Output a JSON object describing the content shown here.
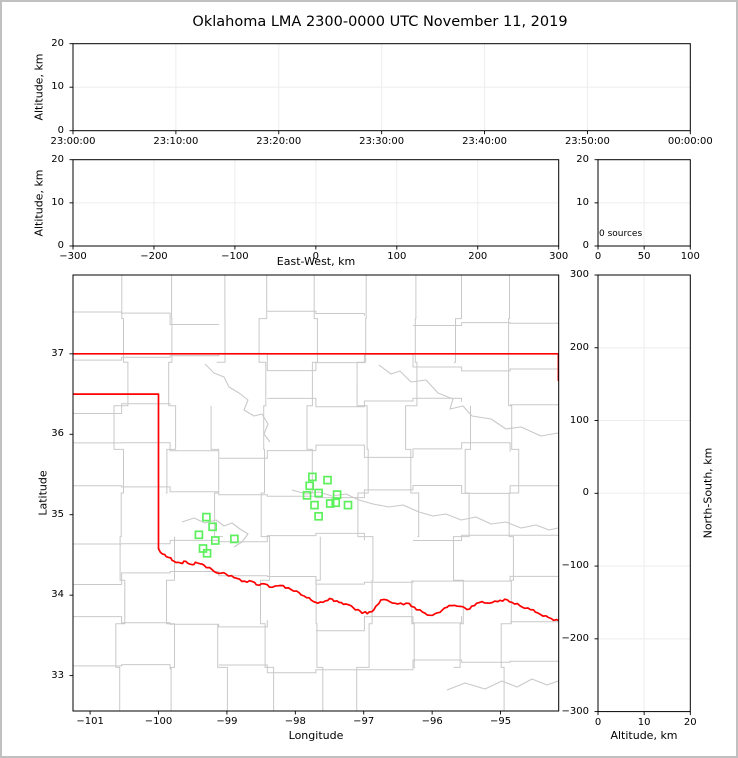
{
  "figure": {
    "title": "Oklahoma LMA 2300-0000 UTC November 11, 2019"
  },
  "colors": {
    "page_border": "#c0c0c0",
    "axis_frame": "#000000",
    "gridline": "#ededed",
    "county_lines": "#c9c9c9",
    "state_border": "#ff0000",
    "station_marker": "#5df05d",
    "text": "#000000"
  },
  "panels": {
    "time_height": {
      "ylabel": "Altitude, km",
      "xtick_labels": [
        "23:00:00",
        "23:10:00",
        "23:20:00",
        "23:30:00",
        "23:40:00",
        "23:50:00",
        "00:00:00"
      ],
      "xtick_values": [
        0,
        1,
        2,
        3,
        4,
        5,
        6
      ],
      "xlim": [
        0,
        6
      ],
      "ytick_labels": [
        "0",
        "10",
        "20"
      ],
      "ytick_values": [
        0,
        10,
        20
      ],
      "ylim": [
        0,
        20
      ]
    },
    "ew_height": {
      "ylabel": "Altitude, km",
      "xlabel": "East-West, km",
      "xtick_labels": [
        "−300",
        "−200",
        "−100",
        "0",
        "100",
        "200",
        "300"
      ],
      "xtick_values": [
        -300,
        -200,
        -100,
        0,
        100,
        200,
        300
      ],
      "xlim": [
        -300,
        300
      ],
      "ytick_labels": [
        "0",
        "10",
        "20"
      ],
      "ytick_values": [
        0,
        10,
        20
      ],
      "ylim": [
        0,
        20
      ]
    },
    "alt_hist": {
      "annotation": "0 sources",
      "xtick_labels": [
        "0",
        "50",
        "100"
      ],
      "xtick_values": [
        0,
        50,
        100
      ],
      "xlim": [
        0,
        100
      ],
      "ytick_labels": [
        "0",
        "10",
        "20"
      ],
      "ytick_values": [
        0,
        10,
        20
      ],
      "ylim": [
        0,
        20
      ]
    },
    "map": {
      "xlabel": "Longitude",
      "ylabel": "Latitude",
      "xtick_labels": [
        "−101",
        "−100",
        "−99",
        "−98",
        "−97",
        "−96",
        "−95"
      ],
      "xtick_values": [
        -101,
        -100,
        -99,
        -98,
        -97,
        -96,
        -95
      ],
      "xlim": [
        -101.25,
        -94.15
      ],
      "ytick_labels": [
        "33",
        "34",
        "35",
        "36",
        "37"
      ],
      "ytick_values": [
        33,
        34,
        35,
        36,
        37
      ],
      "ylim": [
        32.56,
        37.98
      ]
    },
    "ns_height": {
      "xlabel": "Altitude, km",
      "ylabel": "North-South, km",
      "xtick_labels": [
        "0",
        "10",
        "20"
      ],
      "xtick_values": [
        0,
        10,
        20
      ],
      "xlim": [
        0,
        20
      ],
      "ytick_labels": [
        "−300",
        "−200",
        "−100",
        "0",
        "100",
        "200",
        "300"
      ],
      "ytick_values": [
        -300,
        -200,
        -100,
        0,
        100,
        200,
        300
      ],
      "ylim": [
        -300,
        300
      ]
    }
  },
  "chart_data": [
    {
      "type": "scatter",
      "panel": "time_height",
      "title": "Oklahoma LMA 2300-0000 UTC November 11, 2019",
      "xlabel_ticks": [
        "23:00:00",
        "23:10:00",
        "23:20:00",
        "23:30:00",
        "23:40:00",
        "23:50:00",
        "00:00:00"
      ],
      "ylabel": "Altitude, km",
      "ylim": [
        0,
        20
      ],
      "points": [],
      "note": "no VHF sources plotted"
    },
    {
      "type": "scatter",
      "panel": "ew_height",
      "xlabel": "East-West, km",
      "ylabel": "Altitude, km",
      "xlim": [
        -300,
        300
      ],
      "ylim": [
        0,
        20
      ],
      "points": []
    },
    {
      "type": "histogram",
      "panel": "altitude_histogram",
      "xlim": [
        0,
        100
      ],
      "ylim": [
        0,
        20
      ],
      "annotation": "0 sources",
      "source_count": 0,
      "points": []
    },
    {
      "type": "map",
      "panel": "plan_view",
      "xlabel": "Longitude",
      "ylabel": "Latitude",
      "lon_lim": [
        -101.25,
        -94.15
      ],
      "lat_lim": [
        32.56,
        37.98
      ],
      "lma_stations_lon_lat": [
        [
          -99.3,
          34.97
        ],
        [
          -99.21,
          34.85
        ],
        [
          -99.41,
          34.75
        ],
        [
          -99.17,
          34.68
        ],
        [
          -98.89,
          34.7
        ],
        [
          -99.35,
          34.58
        ],
        [
          -99.29,
          34.52
        ],
        [
          -97.75,
          35.47
        ],
        [
          -97.53,
          35.43
        ],
        [
          -97.79,
          35.36
        ],
        [
          -97.66,
          35.27
        ],
        [
          -97.83,
          35.24
        ],
        [
          -97.39,
          35.25
        ],
        [
          -97.41,
          35.15
        ],
        [
          -97.49,
          35.14
        ],
        [
          -97.72,
          35.12
        ],
        [
          -97.23,
          35.12
        ],
        [
          -97.66,
          34.98
        ]
      ],
      "state_border_segments": [
        [
          [
            -101.25,
            37.0
          ],
          [
            -94.155,
            37.0
          ]
        ],
        [
          [
            -94.155,
            37.0
          ],
          [
            -94.155,
            36.67
          ]
        ],
        [
          [
            -101.25,
            36.5
          ],
          [
            -100.0,
            36.5
          ],
          [
            -100.0,
            34.58
          ]
        ],
        [
          [
            -100.0,
            34.58
          ],
          [
            -99.94,
            34.51
          ],
          [
            -99.86,
            34.47
          ],
          [
            -99.77,
            34.42
          ],
          [
            -99.68,
            34.4
          ],
          [
            -99.6,
            34.42
          ],
          [
            -99.51,
            34.38
          ],
          [
            -99.43,
            34.4
          ],
          [
            -99.33,
            34.37
          ],
          [
            -99.22,
            34.32
          ],
          [
            -99.12,
            34.27
          ],
          [
            -99.01,
            34.26
          ],
          [
            -98.9,
            34.22
          ],
          [
            -98.78,
            34.17
          ],
          [
            -98.67,
            34.18
          ],
          [
            -98.57,
            34.13
          ],
          [
            -98.45,
            34.14
          ],
          [
            -98.33,
            34.1
          ],
          [
            -98.22,
            34.12
          ],
          [
            -98.1,
            34.09
          ],
          [
            -97.98,
            34.05
          ],
          [
            -97.87,
            33.99
          ],
          [
            -97.77,
            33.94
          ],
          [
            -97.67,
            33.9
          ],
          [
            -97.56,
            33.93
          ],
          [
            -97.46,
            33.95
          ],
          [
            -97.36,
            33.91
          ],
          [
            -97.26,
            33.89
          ],
          [
            -97.15,
            33.84
          ],
          [
            -97.05,
            33.8
          ],
          [
            -96.95,
            33.77
          ],
          [
            -96.85,
            33.82
          ],
          [
            -96.75,
            33.94
          ],
          [
            -96.62,
            33.92
          ],
          [
            -96.5,
            33.89
          ],
          [
            -96.38,
            33.9
          ],
          [
            -96.26,
            33.85
          ],
          [
            -96.14,
            33.79
          ],
          [
            -96.03,
            33.75
          ],
          [
            -95.93,
            33.78
          ],
          [
            -95.82,
            33.84
          ],
          [
            -95.71,
            33.87
          ],
          [
            -95.59,
            33.86
          ],
          [
            -95.49,
            33.82
          ],
          [
            -95.38,
            33.87
          ],
          [
            -95.27,
            33.92
          ],
          [
            -95.16,
            33.9
          ],
          [
            -95.04,
            33.92
          ],
          [
            -94.94,
            33.95
          ],
          [
            -94.83,
            33.91
          ],
          [
            -94.72,
            33.87
          ],
          [
            -94.6,
            33.84
          ],
          [
            -94.49,
            33.79
          ],
          [
            -94.38,
            33.74
          ],
          [
            -94.26,
            33.71
          ],
          [
            -94.14,
            33.68
          ]
        ]
      ]
    },
    {
      "type": "scatter",
      "panel": "ns_height",
      "xlabel": "Altitude, km",
      "ylabel": "North-South, km",
      "xlim": [
        0,
        20
      ],
      "ylim": [
        -300,
        300
      ],
      "points": []
    }
  ]
}
